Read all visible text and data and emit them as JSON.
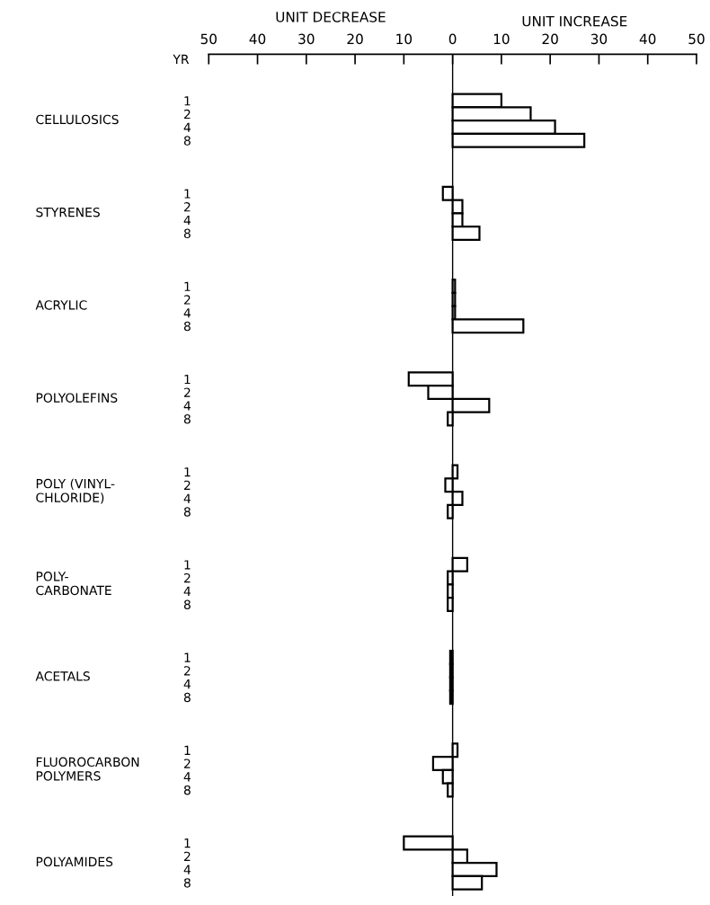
{
  "chart_data": {
    "type": "bar",
    "orientation": "horizontal",
    "ylabel": "YR",
    "annotations": [
      "UNIT DECREASE",
      "UNIT INCREASE",
      "CELLULOSICS",
      "STYRENES",
      "ACRYLIC",
      "POLYOLEFINS",
      "POLY (VINYL-\nCHLORIDE)",
      "POLY-\nCARBONATE",
      "ACETALS",
      "FLUOROCARBON\nPOLYMERS",
      "POLYAMIDES"
    ],
    "categories": [
      "1",
      "2",
      "4",
      "8",
      null,
      null,
      null,
      "1",
      "2",
      "4",
      "8",
      null,
      null,
      null,
      "1",
      "2",
      "4",
      "8",
      null,
      null,
      null,
      "1",
      "2",
      "4",
      "8",
      null,
      null,
      null,
      "1",
      "2",
      "4",
      "8",
      null,
      null,
      null,
      "1",
      "2",
      "4",
      "8",
      null,
      null,
      null,
      "1",
      "2",
      "4",
      "8",
      null,
      null,
      null,
      "1",
      "2",
      "4",
      "8",
      null,
      null,
      null,
      "1",
      "2",
      "4",
      "8"
    ],
    "values": [
      10,
      16,
      21,
      27,
      null,
      null,
      null,
      -2,
      2,
      2,
      5.5,
      null,
      null,
      null,
      0.5,
      0.5,
      0.5,
      14.5,
      null,
      null,
      null,
      -9,
      -5,
      7.5,
      -1,
      null,
      null,
      null,
      1,
      -1.5,
      2,
      -1,
      null,
      null,
      null,
      3,
      -1,
      -1,
      -1,
      null,
      null,
      null,
      -0.5,
      -0.5,
      -0.5,
      -0.5,
      null,
      null,
      null,
      1,
      -4,
      -2,
      -1,
      null,
      null,
      null,
      -10,
      3,
      9,
      6
    ],
    "colors": [
      "#ffffff",
      "#ffffff",
      "#ffffff",
      "#ffffff",
      null,
      null,
      null,
      "#ffffff",
      "#ffffff",
      "#ffffff",
      "#ffffff",
      null,
      null,
      null,
      "#ffffff",
      "#ffffff",
      "#ffffff",
      "#ffffff",
      null,
      null,
      null,
      "#ffffff",
      "#ffffff",
      "#ffffff",
      "#ffffff",
      null,
      null,
      null,
      "#ffffff",
      "#ffffff",
      "#ffffff",
      "#ffffff",
      null,
      null,
      null,
      "#ffffff",
      "#ffffff",
      "#ffffff",
      "#ffffff",
      null,
      null,
      null,
      "#000000",
      "#000000",
      "#000000",
      "#000000",
      null,
      null,
      null,
      "#ffffff",
      "#ffffff",
      "#ffffff",
      "#ffffff",
      null,
      null,
      null,
      "#ffffff",
      "#ffffff",
      "#ffffff",
      "#ffffff"
    ],
    "xlim": [
      -50,
      50
    ],
    "xticks": [
      {
        "value": -50,
        "label": "50"
      },
      {
        "value": -40,
        "label": "40"
      },
      {
        "value": -30,
        "label": "30"
      },
      {
        "value": -20,
        "label": "20"
      },
      {
        "value": -10,
        "label": "10"
      },
      0,
      10,
      20,
      30,
      40,
      50
    ],
    "ref_lines": [
      {
        "axis": "x",
        "value": 0,
        "color": "#000000"
      }
    ]
  }
}
